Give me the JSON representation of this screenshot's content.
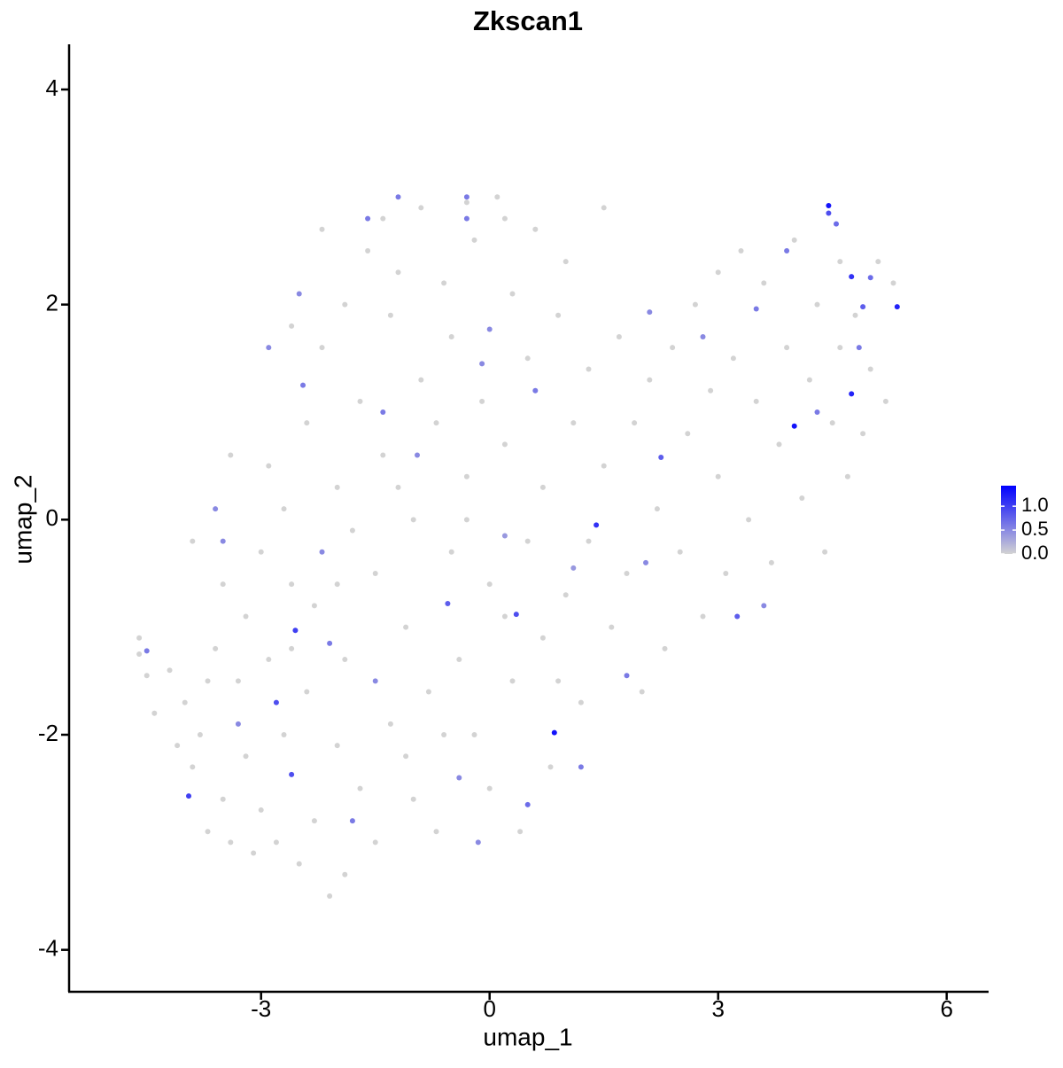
{
  "chart_data": {
    "type": "scatter",
    "title": "Zkscan1",
    "xlabel": "umap_1",
    "ylabel": "umap_2",
    "xlim": [
      -5.52,
      6.55
    ],
    "ylim": [
      -4.39,
      4.42
    ],
    "xticks": [
      -3,
      0,
      3,
      6
    ],
    "yticks": [
      -4,
      -2,
      0,
      2,
      4
    ],
    "x": [
      -4.6,
      -4.6,
      -4.5,
      -4.4,
      -4.2,
      -4.1,
      -4.0,
      -3.9,
      -3.8,
      -3.7,
      -3.6,
      -3.5,
      -3.5,
      -3.4,
      -3.3,
      -3.2,
      -3.2,
      -3.1,
      -3.0,
      -3.0,
      -2.9,
      -2.9,
      -2.8,
      -2.7,
      -2.7,
      -2.6,
      -2.5,
      -2.4,
      -2.4,
      -2.3,
      -2.3,
      -2.2,
      -2.1,
      -2.0,
      -2.0,
      -1.9,
      -1.9,
      -1.8,
      -1.7,
      -1.7,
      -1.6,
      -1.5,
      -1.5,
      -1.4,
      -1.3,
      -1.3,
      -1.2,
      -1.1,
      -1.0,
      -1.0,
      -0.9,
      -0.9,
      -0.8,
      -0.7,
      -0.7,
      -0.6,
      -0.5,
      -0.5,
      -0.4,
      -0.3,
      -0.2,
      -0.2,
      -0.1,
      0.0,
      0.0,
      0.1,
      0.2,
      0.3,
      0.3,
      0.4,
      0.5,
      0.5,
      0.6,
      0.7,
      0.7,
      0.8,
      0.9,
      1.0,
      1.0,
      1.1,
      1.2,
      1.3,
      1.3,
      1.5,
      1.5,
      1.6,
      1.7,
      1.8,
      1.9,
      2.0,
      2.1,
      2.2,
      2.3,
      2.4,
      2.5,
      2.6,
      2.7,
      2.8,
      2.9,
      3.0,
      3.0,
      3.1,
      3.2,
      3.3,
      3.4,
      3.5,
      3.6,
      3.7,
      3.8,
      3.9,
      4.0,
      4.1,
      4.2,
      4.3,
      4.4,
      4.5,
      4.6,
      4.6,
      4.7,
      4.8,
      4.9,
      5.0,
      5.1,
      5.2,
      5.3,
      -3.9,
      -3.4,
      -2.6,
      -2.2,
      -1.4,
      -0.3,
      0.2,
      -1.1,
      -2.6,
      -3.7,
      -1.9,
      -0.6,
      0.9,
      0.2,
      -1.2,
      -0.3,
      -2.0,
      -1.2,
      -0.3,
      4.45,
      4.45,
      4.55,
      4.75,
      5.35,
      4.75,
      4.0,
      0.85,
      1.4,
      -2.55,
      -2.8,
      -3.95,
      -2.6,
      0.35,
      3.25,
      2.25,
      -1.8,
      -4.5,
      -0.3,
      -1.4,
      -2.45,
      -0.55,
      -2.9,
      0.0,
      0.6,
      2.1,
      3.5,
      4.9,
      5.0,
      4.85,
      1.2,
      -2.2,
      -3.5,
      -0.95,
      2.05,
      1.8,
      0.5,
      -0.1,
      -3.3,
      -2.1,
      -1.5,
      -0.4,
      2.8,
      3.9,
      4.3,
      -1.6,
      -2.5,
      -0.15,
      3.6,
      -3.6,
      1.1,
      0.2
    ],
    "y": [
      -1.25,
      -1.1,
      -1.45,
      -1.8,
      -1.4,
      -2.1,
      -1.7,
      -2.3,
      -2.0,
      -2.9,
      -1.2,
      -2.6,
      -0.6,
      -3.0,
      -1.5,
      -2.2,
      -0.9,
      -3.1,
      -0.3,
      -2.7,
      -1.3,
      0.5,
      -3.0,
      -2.0,
      0.1,
      -0.6,
      -3.2,
      -1.6,
      0.9,
      -2.8,
      -0.8,
      1.6,
      -3.5,
      -2.1,
      0.3,
      -1.3,
      2.0,
      -0.1,
      -2.5,
      1.1,
      2.5,
      -0.5,
      -3.0,
      0.6,
      -1.9,
      1.9,
      2.3,
      -1.0,
      -2.6,
      0.0,
      1.3,
      2.9,
      -1.6,
      0.9,
      -2.9,
      2.2,
      -0.3,
      1.7,
      -1.3,
      0.4,
      -2.0,
      2.6,
      1.1,
      -0.6,
      -2.5,
      3.0,
      0.7,
      -1.5,
      2.1,
      -2.9,
      1.5,
      -0.2,
      2.7,
      -1.1,
      0.3,
      -2.3,
      1.9,
      -0.7,
      2.4,
      0.9,
      -1.7,
      1.4,
      -0.2,
      2.9,
      0.5,
      -1.0,
      1.7,
      -0.5,
      0.9,
      -1.6,
      1.3,
      0.1,
      -1.2,
      1.6,
      -0.3,
      0.8,
      2.0,
      -0.9,
      1.2,
      0.4,
      2.3,
      -0.5,
      1.5,
      2.5,
      0.0,
      1.1,
      2.2,
      -0.4,
      0.7,
      1.6,
      2.6,
      0.2,
      1.3,
      2.0,
      -0.3,
      0.9,
      1.6,
      2.4,
      0.4,
      1.9,
      0.8,
      1.4,
      2.4,
      1.1,
      2.2,
      -0.2,
      0.6,
      1.8,
      2.7,
      2.8,
      2.95,
      2.8,
      -2.2,
      -1.2,
      -1.5,
      -3.3,
      -2.0,
      -1.5,
      -0.9,
      0.3,
      0.0,
      -0.6,
      3.0,
      3.0,
      2.92,
      2.85,
      2.75,
      2.26,
      1.98,
      1.17,
      0.87,
      -1.98,
      -0.05,
      -1.03,
      -1.7,
      -2.57,
      -2.37,
      -0.88,
      -0.9,
      0.58,
      -2.8,
      -1.22,
      2.8,
      1.0,
      1.25,
      -0.78,
      1.6,
      1.77,
      1.2,
      1.93,
      1.96,
      1.98,
      2.25,
      1.6,
      -2.3,
      -0.3,
      -0.2,
      0.6,
      -0.4,
      -1.45,
      -2.65,
      1.45,
      -1.9,
      -1.15,
      -1.5,
      -2.4,
      1.7,
      2.5,
      1.0,
      2.8,
      2.1,
      -3.0,
      -0.8,
      0.1,
      -0.45,
      -0.15
    ],
    "color_values": [
      0,
      0,
      0,
      0,
      0,
      0,
      0,
      0,
      0,
      0,
      0,
      0,
      0,
      0,
      0,
      0,
      0,
      0,
      0,
      0,
      0,
      0,
      0,
      0,
      0,
      0,
      0,
      0,
      0,
      0,
      0,
      0,
      0,
      0,
      0,
      0,
      0,
      0,
      0,
      0,
      0,
      0,
      0,
      0,
      0,
      0,
      0,
      0,
      0,
      0,
      0,
      0,
      0,
      0,
      0,
      0,
      0,
      0,
      0,
      0,
      0,
      0,
      0,
      0,
      0,
      0,
      0,
      0,
      0,
      0,
      0,
      0,
      0,
      0,
      0,
      0,
      0,
      0,
      0,
      0,
      0,
      0,
      0,
      0,
      0,
      0,
      0,
      0,
      0,
      0,
      0,
      0,
      0,
      0,
      0,
      0,
      0,
      0,
      0,
      0,
      0,
      0,
      0,
      0,
      0,
      0,
      0,
      0,
      0,
      0,
      0,
      0,
      0,
      0,
      0,
      0,
      0,
      0,
      0,
      0,
      0,
      0,
      0,
      0,
      0,
      0,
      0,
      0,
      0,
      0,
      0,
      0,
      0,
      0,
      0,
      0,
      0,
      0,
      0,
      0,
      0,
      0,
      0.6,
      0.6,
      1.3,
      0.9,
      0.7,
      1.1,
      1.2,
      1.2,
      1.3,
      1.3,
      1.1,
      1.0,
      0.9,
      1.0,
      0.9,
      0.9,
      0.8,
      0.8,
      0.6,
      0.6,
      0.6,
      0.6,
      0.6,
      0.8,
      0.5,
      0.5,
      0.6,
      0.5,
      0.6,
      0.8,
      0.7,
      0.6,
      0.6,
      0.5,
      0.5,
      0.5,
      0.5,
      0.6,
      0.7,
      0.5,
      0.5,
      0.6,
      0.5,
      0.5,
      0.5,
      0.6,
      0.6,
      0.6,
      0.5,
      0.5,
      0.5,
      0.5,
      0.4,
      0.4
    ],
    "colorbar": {
      "lim": [
        0,
        1.43
      ],
      "ticks": [
        {
          "value": 0,
          "label": "0.0"
        },
        {
          "value": 0.5,
          "label": "0.5"
        },
        {
          "value": 1,
          "label": "1.0"
        }
      ],
      "low": "#d3d3d3",
      "high": "#0000ff"
    }
  }
}
